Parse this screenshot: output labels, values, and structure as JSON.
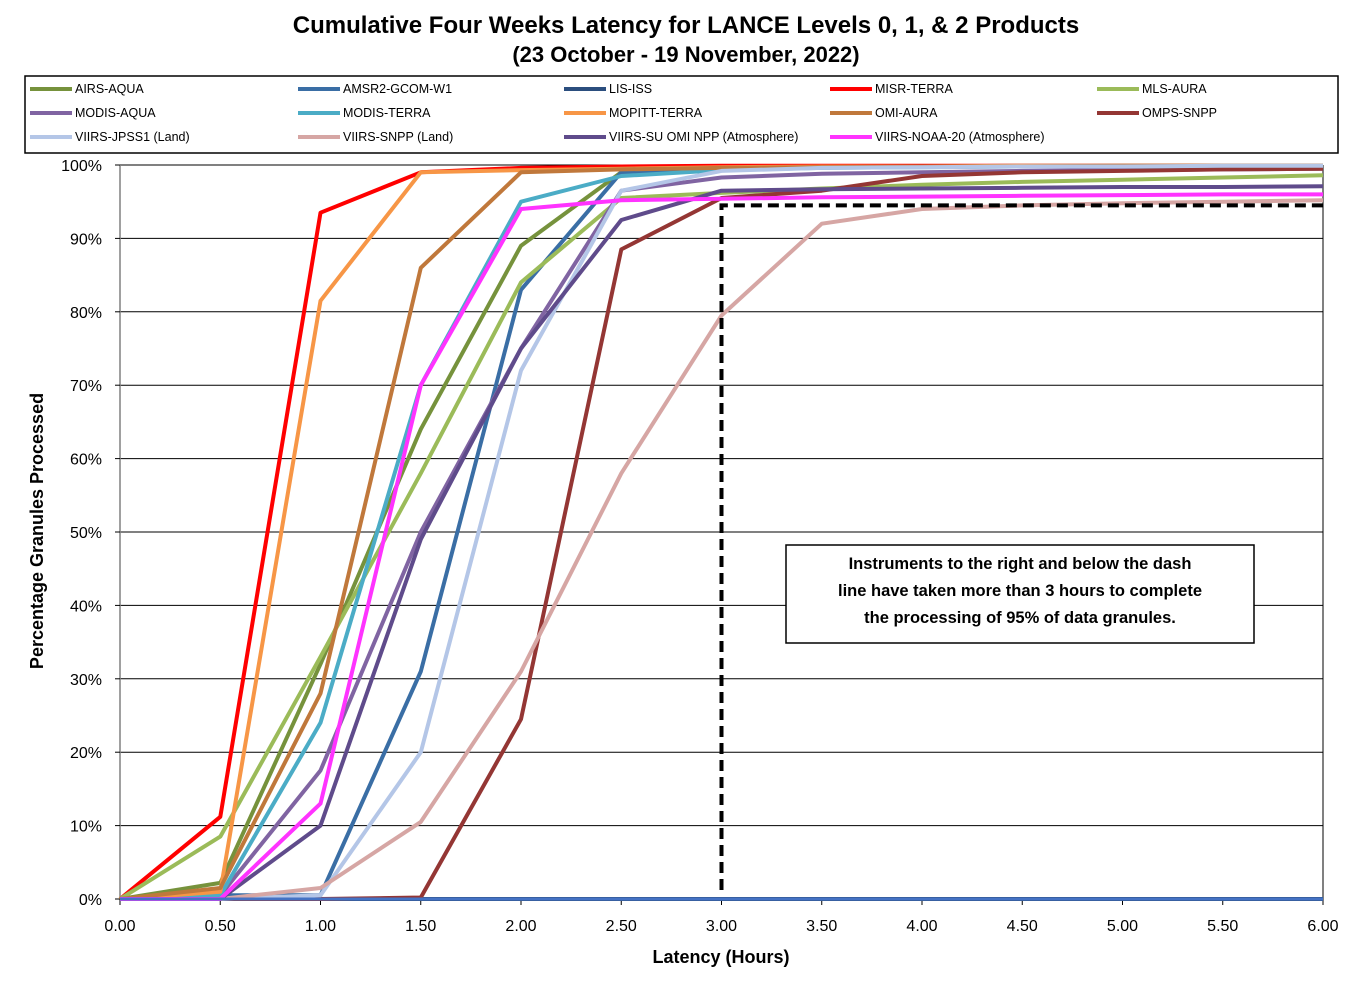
{
  "chart_data": {
    "type": "line",
    "title": "Cumulative Four Weeks Latency  for LANCE Levels 0, 1, & 2 Products",
    "subtitle": "(23  October   -  19  November,  2022)",
    "xlabel": "Latency (Hours)",
    "ylabel": "Percentage Granules Processed",
    "xlim": [
      0,
      6
    ],
    "ylim": [
      0,
      100
    ],
    "x_ticks": [
      "0.00",
      "0.50",
      "1.00",
      "1.50",
      "2.00",
      "2.50",
      "3.00",
      "3.50",
      "4.00",
      "4.50",
      "5.00",
      "5.50",
      "6.00"
    ],
    "y_ticks": [
      "0%",
      "10%",
      "20%",
      "30%",
      "40%",
      "50%",
      "60%",
      "70%",
      "80%",
      "90%",
      "100%"
    ],
    "grid": "horizontal",
    "legend_position": "top",
    "x": [
      0,
      0.5,
      1,
      1.5,
      2,
      2.5,
      3,
      3.5,
      4,
      4.5,
      5,
      5.5,
      6
    ],
    "series": [
      {
        "name": "AIRS-AQUA",
        "color": "#76923c",
        "values": [
          0,
          2.2,
          32,
          64,
          89,
          99,
          99.5,
          99.7,
          99.8,
          99.8,
          99.9,
          99.9,
          99.9
        ]
      },
      {
        "name": "AMSR2-GCOM-W1",
        "color": "#3a6ea5",
        "values": [
          0,
          0.5,
          0.5,
          31,
          83,
          99,
          99.5,
          99.7,
          99.8,
          99.9,
          99.9,
          99.9,
          99.9
        ]
      },
      {
        "name": "LIS-ISS",
        "color": "#2b4e7e",
        "values": [
          0,
          0,
          0,
          0,
          0,
          0,
          0,
          0,
          0,
          0,
          0,
          0,
          0
        ]
      },
      {
        "name": "MISR-TERRA",
        "color": "#ff0000",
        "values": [
          0,
          11.2,
          93.5,
          99,
          99.6,
          99.8,
          99.9,
          99.9,
          99.9,
          99.9,
          99.9,
          99.9,
          99.9
        ]
      },
      {
        "name": "MLS-AURA",
        "color": "#9bbb59",
        "values": [
          0,
          8.5,
          33,
          58,
          84,
          95.5,
          96.2,
          96.8,
          97.3,
          97.7,
          98,
          98.3,
          98.6
        ]
      },
      {
        "name": "MODIS-AQUA",
        "color": "#8064a2",
        "values": [
          0,
          0.5,
          17.5,
          50,
          75,
          96.5,
          98.3,
          98.8,
          99,
          99.2,
          99.3,
          99.4,
          99.5
        ]
      },
      {
        "name": "MODIS-TERRA",
        "color": "#4bacc6",
        "values": [
          0,
          0.5,
          24,
          70,
          95,
          98.5,
          99.3,
          99.6,
          99.7,
          99.8,
          99.8,
          99.9,
          99.9
        ]
      },
      {
        "name": "MOPITT-TERRA",
        "color": "#f79646",
        "values": [
          0,
          1,
          81.5,
          99,
          99.3,
          99.5,
          99.7,
          99.8,
          99.8,
          99.9,
          99.9,
          99.9,
          99.9
        ]
      },
      {
        "name": "OMI-AURA",
        "color": "#c0783b",
        "values": [
          0,
          1.5,
          28,
          86,
          99,
          99.4,
          99.6,
          99.7,
          99.8,
          99.8,
          99.9,
          99.9,
          99.9
        ]
      },
      {
        "name": "OMPS-SNPP",
        "color": "#943634",
        "values": [
          0,
          0,
          0,
          0.2,
          24.5,
          88.5,
          95.5,
          96.5,
          98.5,
          99,
          99.2,
          99.4,
          99.5
        ]
      },
      {
        "name": "VIIRS-JPSS1 (Land)",
        "color": "#b4c6e7",
        "values": [
          0,
          0,
          0.5,
          20,
          72,
          96.5,
          99.2,
          99.6,
          99.7,
          99.8,
          99.8,
          99.9,
          99.9
        ]
      },
      {
        "name": "VIIRS-SNPP (Land)",
        "color": "#d6a6a4",
        "values": [
          0,
          0,
          1.5,
          10.5,
          31,
          58,
          79.5,
          92,
          94,
          94.5,
          94.8,
          95,
          95.2
        ]
      },
      {
        "name": "VIIRS-SU OMI NPP (Atmosphere)",
        "color": "#5f4b8b",
        "values": [
          0,
          0,
          10,
          49,
          75,
          92.5,
          96.5,
          96.7,
          96.8,
          96.9,
          97,
          97,
          97.1
        ]
      },
      {
        "name": "VIIRS-NOAA-20 (Atmosphere)",
        "color": "#ff33ff",
        "values": [
          0,
          0,
          13,
          70,
          94,
          95.2,
          95.4,
          95.6,
          95.7,
          95.8,
          95.9,
          96,
          96
        ]
      }
    ],
    "threshold_line": {
      "x": 3.0,
      "y": 94.5,
      "style": "dashed",
      "color": "#000000"
    },
    "annotation": [
      "Instruments to the right and below the dash",
      "line have taken more than 3 hours to complete",
      "the processing of 95% of data granules."
    ]
  }
}
